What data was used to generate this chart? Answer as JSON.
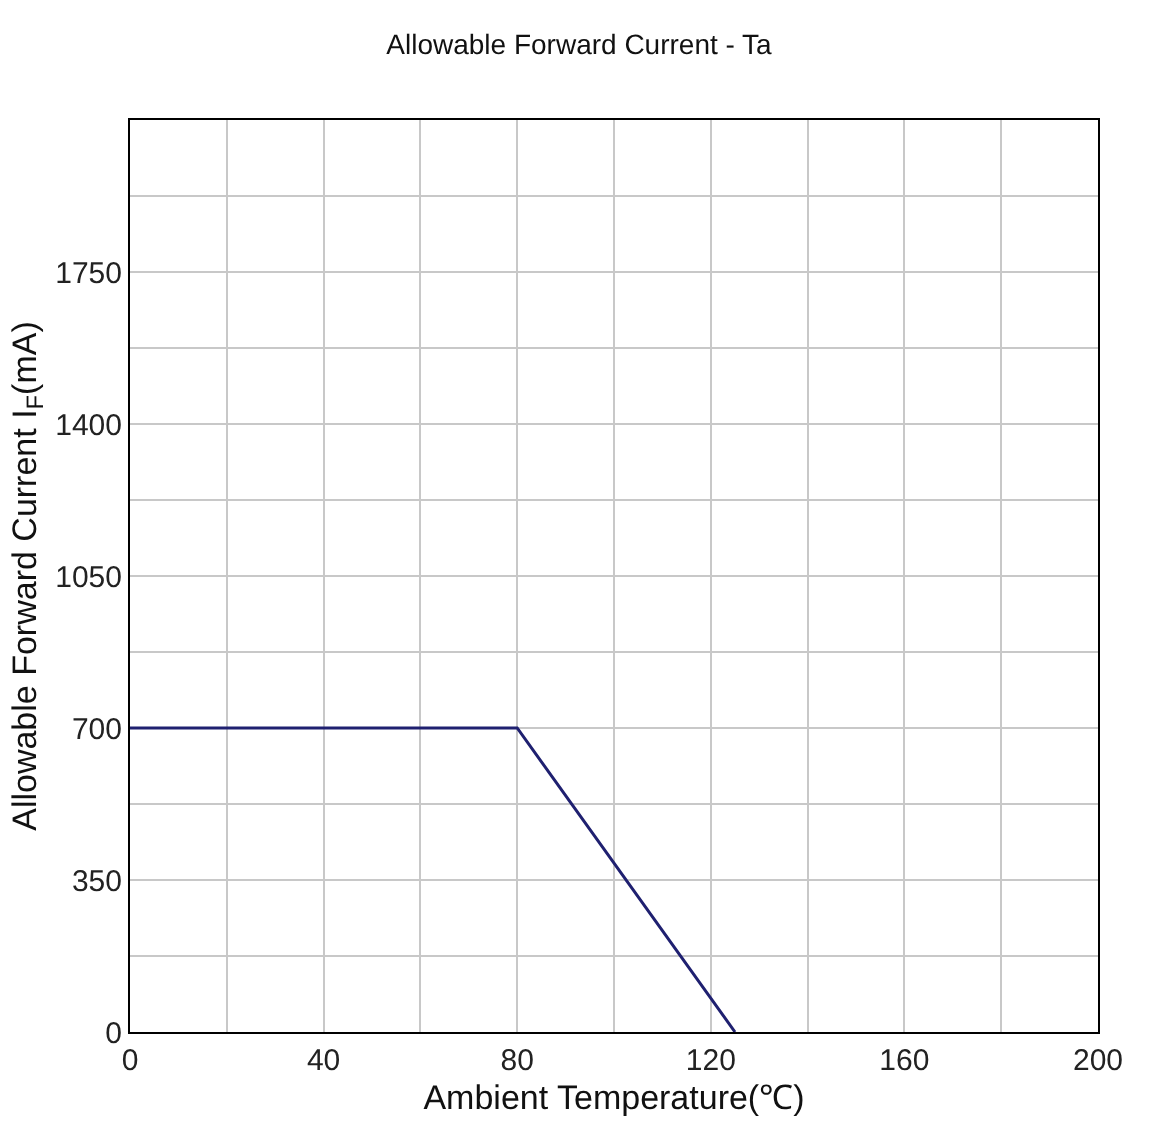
{
  "chart_data": {
    "type": "line",
    "title": "Allowable Forward Current - Ta",
    "xlabel": "Ambient Temperature(℃)",
    "ylabel": "Allowable Forward Current I$_{F}$(mA)",
    "x": [
      0,
      80,
      125
    ],
    "series": [
      {
        "color": "#1f2070",
        "values": [
          700,
          700,
          0
        ]
      }
    ],
    "xlim": [
      0,
      200
    ],
    "xticks": [
      0,
      {
        "value": 20,
        "label": null
      },
      40,
      {
        "value": 60,
        "label": null
      },
      80,
      {
        "value": 100,
        "label": null
      },
      120,
      {
        "value": 140,
        "label": null
      },
      160,
      {
        "value": 180,
        "label": null
      },
      200
    ],
    "ylim": [
      0,
      2100
    ],
    "yticks": [
      0,
      {
        "value": 175,
        "label": null
      },
      350,
      {
        "value": 525,
        "label": null
      },
      700,
      {
        "value": 875,
        "label": null
      },
      1050,
      {
        "value": 1225,
        "label": null
      },
      1400,
      {
        "value": 1575,
        "label": null
      },
      1750,
      {
        "value": 1925,
        "label": null
      },
      {
        "value": 2100,
        "label": null
      }
    ],
    "grid": true,
    "legend": false,
    "marker": "none",
    "line_style": "solid"
  }
}
